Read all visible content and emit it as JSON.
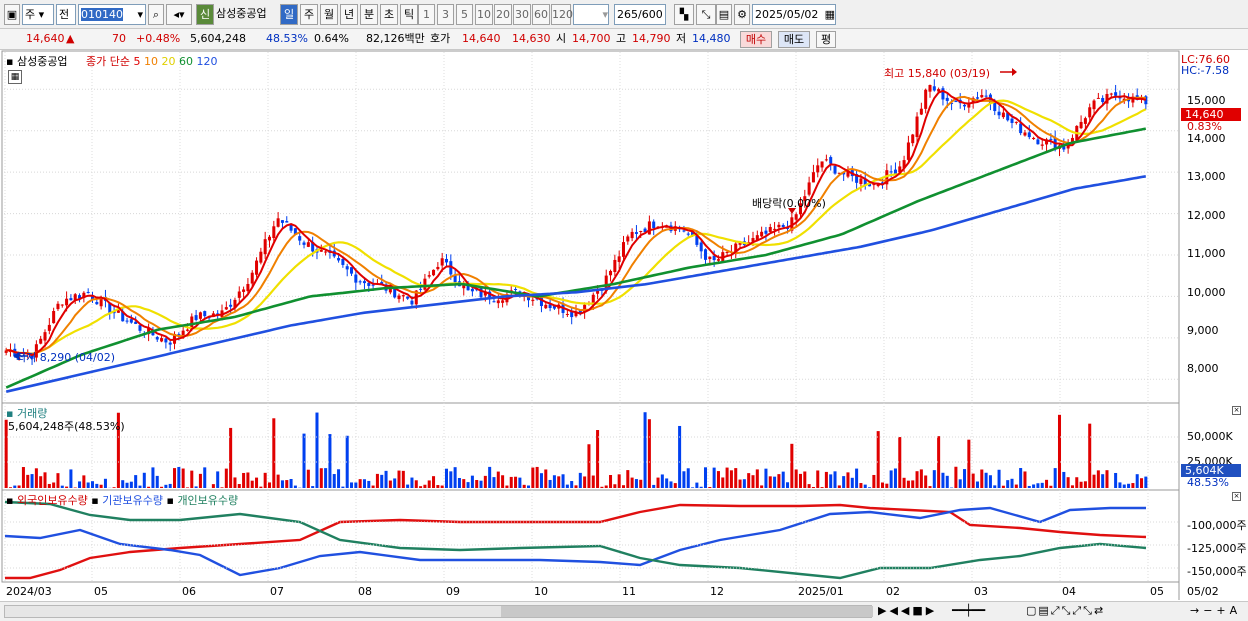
{
  "toolbar": {
    "type_select": "주",
    "prefix_select": "전",
    "code": "010140",
    "new_badge": "신",
    "stock_name": "삼성중공업",
    "periods": [
      "일",
      "주",
      "월",
      "년",
      "분",
      "초",
      "틱"
    ],
    "active_period": "일",
    "intervals": [
      "1",
      "3",
      "5",
      "10",
      "20",
      "30",
      "60",
      "120"
    ],
    "count": "265",
    "count_total": "/600",
    "date": "2025/05/02"
  },
  "quote": {
    "price": "14,640",
    "arrow": "▲",
    "change": "70",
    "change_pct": "+0.48%",
    "volume": "5,604,248",
    "vol_ratio": "48.53%",
    "turnover": "0.64%",
    "amount": "82,126백만",
    "hoga_label": "호가",
    "ask": "14,640",
    "bid": "14,630",
    "open_label": "시",
    "open": "14,700",
    "high_label": "고",
    "high": "14,790",
    "low_label": "저",
    "low": "14,480",
    "buy_btn": "매수",
    "sell_btn": "매도",
    "avg_btn": "평"
  },
  "colors": {
    "ma5": "#e00000",
    "ma10": "#f08000",
    "ma20": "#f0e000",
    "ma60": "#109030",
    "ma120": "#2050e0",
    "up": "#e00000",
    "down": "#0040f0"
  },
  "price_panel": {
    "name": "삼성중공업",
    "ma_title": "종가 단순",
    "ma_periods": [
      "5",
      "10",
      "20",
      "60",
      "120"
    ],
    "lc": "LC:76.60",
    "hc": "HC:-7.58",
    "current_tag": "14,640",
    "current_pct": "0.83%",
    "high_note": "최고 15,840 (03/19)",
    "low_note": "최저 8,290 (04/02)",
    "dividend_note": "배당락(0.00%)",
    "y_ticks": [
      "15,000",
      "14,000",
      "13,000",
      "12,000",
      "11,000",
      "10,000",
      "9,000",
      "8,000"
    ]
  },
  "volume_panel": {
    "title": "거래량",
    "value": "5,604,248주(48.53%)",
    "y_ticks": [
      "50,000K",
      "25,000K"
    ],
    "current_tag": "5,604K",
    "current_pct": "48.53%"
  },
  "investor_panel": {
    "legend": [
      "외국인보유수량",
      "기관보유수량",
      "개인보유수량"
    ],
    "y_ticks": [
      "-100,000주",
      "-125,000주",
      "-150,000주"
    ]
  },
  "x_axis": {
    "labels": [
      "2024/03",
      "05",
      "06",
      "07",
      "08",
      "09",
      "10",
      "11",
      "12",
      "2025/01",
      "02",
      "03",
      "04",
      "05"
    ],
    "right_label": "05/02"
  },
  "chart_data": {
    "type": "candlestick",
    "x": [
      "2024/03",
      "05",
      "06",
      "07",
      "08",
      "09",
      "10",
      "11",
      "12",
      "2025/01",
      "02",
      "03",
      "04",
      "05"
    ],
    "close_path": [
      8700,
      8600,
      9900,
      10100,
      9600,
      9200,
      8900,
      9500,
      9600,
      10500,
      11900,
      11300,
      10900,
      10400,
      10200,
      9900,
      10900,
      10100,
      10000,
      10100,
      9800,
      9600,
      10300,
      11500,
      11800,
      11600,
      10800,
      11200,
      11500,
      11800,
      13300,
      12900,
      12700,
      13200,
      15100,
      14600,
      14900,
      14200,
      13800,
      13600,
      14600,
      14900,
      14640
    ],
    "ma120_path": [
      7700,
      8100,
      8500,
      8900,
      9300,
      9600,
      9800,
      10000,
      10100,
      10300,
      10600,
      10900,
      11200,
      11600,
      12100,
      12600,
      12900
    ],
    "ma60_path": [
      7800,
      8600,
      9200,
      9500,
      10000,
      10200,
      10300,
      10000,
      10300,
      10700,
      11000,
      11500,
      12300,
      13000,
      13700,
      14050
    ],
    "y_range": [
      7500,
      15900
    ],
    "high": "15,840 (03/19)",
    "low": "8,290 (04/02)"
  }
}
